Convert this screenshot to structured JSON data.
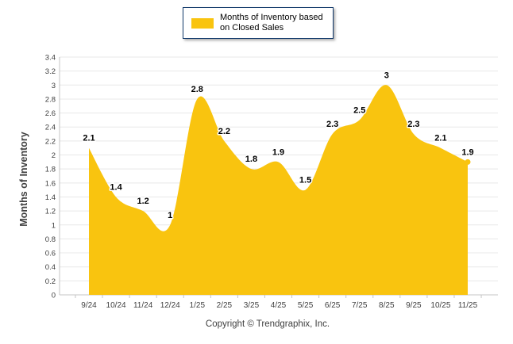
{
  "legend": {
    "lines": [
      "Months of Inventory based",
      "on Closed Sales"
    ],
    "swatch_color": "#F9C40F"
  },
  "footer": {
    "copyright": "Copyright © Trendgraphix, Inc."
  },
  "chart_data": {
    "type": "area",
    "title": "",
    "categories": [
      "9/24",
      "10/24",
      "11/24",
      "12/24",
      "1/25",
      "2/25",
      "3/25",
      "4/25",
      "5/25",
      "6/25",
      "7/25",
      "8/25",
      "9/25",
      "10/25",
      "11/25"
    ],
    "values": [
      2.1,
      1.4,
      1.2,
      1,
      2.8,
      2.2,
      1.8,
      1.9,
      1.5,
      2.3,
      2.5,
      3,
      2.3,
      2.1,
      1.9
    ],
    "point_labels": [
      "2.1",
      "1.4",
      "1.2",
      "1",
      "2.8",
      "2.2",
      "1.8",
      "1.9",
      "1.5",
      "2.3",
      "2.5",
      "3",
      "2.3",
      "2.1",
      "1.9"
    ],
    "series": [
      {
        "name": "Months of Inventory based on Closed Sales",
        "color": "#F9C40F"
      }
    ],
    "xlabel": "",
    "ylabel": "Months of Inventory",
    "ylim": [
      0,
      3.4
    ],
    "ytick_step": 0.2,
    "yticks": [
      "0",
      "0.2",
      "0.4",
      "0.6",
      "0.8",
      "1",
      "1.2",
      "1.4",
      "1.6",
      "1.8",
      "2",
      "2.2",
      "2.4",
      "2.6",
      "2.8",
      "3",
      "3.2",
      "3.4"
    ],
    "grid": "horizontal gridlines on, vertical off",
    "legend_position": "top-center",
    "colors": {
      "area_fill": "#F9C40F",
      "gridline": "#E8E8E8",
      "axis_line": "#C4C4C4",
      "tick_label": "#404040",
      "point_label": "#000000",
      "point_label_halo": "#FFFFFF"
    }
  }
}
